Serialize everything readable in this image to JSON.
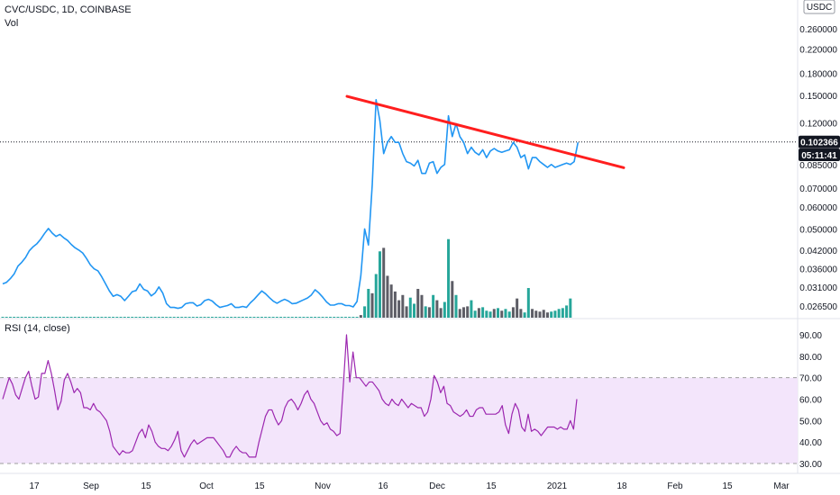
{
  "header": {
    "symbol_line": "CVC/USDC, 1D, COINBASE",
    "volume_label": "Vol",
    "currency_badge": "USDC"
  },
  "rsi_panel": {
    "label": "RSI (14, close)"
  },
  "price_badges": {
    "last_price": "0.102366",
    "countdown": "05:11:41"
  },
  "colors": {
    "price_line": "#2196f3",
    "trendline": "#ff1e1e",
    "vol_up": "#26a69a",
    "vol_down": "#5d5d66",
    "rsi_line": "#9c27b0",
    "rsi_band": "#f3e5fb",
    "badge_bg": "#131722"
  },
  "chart_data": [
    {
      "type": "line",
      "title": "CVC/USDC, 1D, COINBASE",
      "y_scale": "log",
      "y_ticks": [
        "0.260000",
        "0.220000",
        "0.180000",
        "0.150000",
        "0.120000",
        "0.085000",
        "0.070000",
        "0.060000",
        "0.050000",
        "0.042000",
        "0.036000",
        "0.031000",
        "0.026500"
      ],
      "x_ticks": [
        "17",
        "Sep",
        "15",
        "Oct",
        "15",
        "Nov",
        "16",
        "Dec",
        "15",
        "2021",
        "18",
        "Feb",
        "15",
        "Mar"
      ],
      "series": [
        {
          "values": [
            0.0318,
            0.0322,
            0.0332,
            0.0345,
            0.0368,
            0.038,
            0.0395,
            0.0418,
            0.0432,
            0.0443,
            0.046,
            0.0482,
            0.0502,
            0.0483,
            0.047,
            0.0478,
            0.0465,
            0.0455,
            0.044,
            0.0428,
            0.042,
            0.041,
            0.0392,
            0.0372,
            0.036,
            0.0354,
            0.0337,
            0.0318,
            0.03,
            0.0287,
            0.0291,
            0.0287,
            0.0277,
            0.0287,
            0.0298,
            0.0301,
            0.0318,
            0.0304,
            0.03,
            0.0288,
            0.0295,
            0.031,
            0.0295,
            0.027,
            0.0262,
            0.0262,
            0.026,
            0.0262,
            0.027,
            0.0272,
            0.0272,
            0.0265,
            0.0268,
            0.0277,
            0.028,
            0.0276,
            0.0268,
            0.0262,
            0.0264,
            0.0266,
            0.027,
            0.0262,
            0.0262,
            0.0264,
            0.0262,
            0.0272,
            0.028,
            0.029,
            0.03,
            0.0293,
            0.0284,
            0.0276,
            0.0271,
            0.0276,
            0.028,
            0.0276,
            0.027,
            0.0271,
            0.0275,
            0.0279,
            0.0283,
            0.029,
            0.0303,
            0.0295,
            0.0285,
            0.0274,
            0.0267,
            0.0267,
            0.027,
            0.027,
            0.0266,
            0.0266,
            0.0263,
            0.0275,
            0.034,
            0.05,
            0.0438,
            0.072,
            0.145,
            0.122,
            0.093,
            0.102,
            0.107,
            0.102,
            0.102,
            0.093,
            0.087,
            0.086,
            0.084,
            0.088,
            0.079,
            0.079,
            0.086,
            0.087,
            0.079,
            0.083,
            0.085,
            0.127,
            0.107,
            0.119,
            0.107,
            0.102,
            0.093,
            0.098,
            0.094,
            0.092,
            0.096,
            0.09,
            0.095,
            0.097,
            0.095,
            0.094,
            0.095,
            0.096,
            0.102,
            0.098,
            0.09,
            0.092,
            0.082,
            0.09,
            0.09,
            0.087,
            0.085,
            0.083,
            0.085,
            0.083,
            0.084,
            0.085,
            0.086,
            0.085,
            0.087,
            0.102
          ]
        },
        {
          "name": "",
          "values_start": 0.149,
          "values_end": 0.0828
        }
      ]
    },
    {
      "type": "bar",
      "title": "Vol",
      "series": [
        {
          "values": [
            1,
            1,
            1,
            1,
            1,
            1,
            1,
            1,
            1,
            1,
            1,
            1,
            1,
            1,
            1,
            1,
            1,
            1,
            1,
            1,
            1,
            1,
            1,
            1,
            1,
            1,
            1,
            1,
            1,
            1,
            1,
            1,
            1,
            1,
            1,
            1,
            1,
            1,
            1,
            1,
            1,
            1,
            1,
            1,
            1,
            1,
            1,
            1,
            1,
            1,
            1,
            1,
            1,
            1,
            1,
            1,
            1,
            1,
            1,
            1,
            1,
            1,
            1,
            1,
            1,
            1,
            1,
            1,
            1,
            1,
            1,
            1,
            1,
            1,
            1,
            1,
            1,
            1,
            1,
            1,
            1,
            1,
            1,
            1,
            1,
            1,
            1,
            1,
            1,
            1,
            1,
            1,
            1,
            1,
            3,
            13,
            33,
            28,
            50,
            76,
            80,
            48,
            38,
            30,
            20,
            26,
            13,
            23,
            16,
            33,
            26,
            13,
            12,
            26,
            20,
            11,
            18,
            90,
            42,
            26,
            10,
            12,
            13,
            20,
            8,
            11,
            12,
            8,
            7,
            10,
            11,
            8,
            10,
            7,
            12,
            22,
            10,
            6,
            34,
            10,
            8,
            7,
            9,
            6,
            7,
            8,
            10,
            11,
            14,
            22
          ],
          "up": [
            1,
            1,
            1,
            1,
            1,
            1,
            1,
            1,
            1,
            1,
            1,
            1,
            1,
            1,
            1,
            1,
            1,
            1,
            1,
            1,
            1,
            1,
            1,
            1,
            1,
            1,
            1,
            1,
            1,
            1,
            1,
            1,
            1,
            1,
            1,
            1,
            1,
            1,
            1,
            1,
            1,
            1,
            1,
            1,
            1,
            1,
            1,
            1,
            1,
            1,
            1,
            1,
            1,
            1,
            1,
            1,
            1,
            1,
            1,
            1,
            1,
            1,
            1,
            1,
            1,
            1,
            1,
            1,
            1,
            1,
            1,
            1,
            1,
            1,
            1,
            1,
            1,
            1,
            1,
            1,
            1,
            1,
            1,
            1,
            1,
            1,
            1,
            1,
            1,
            1,
            1,
            1,
            1,
            1,
            0,
            1,
            1,
            0,
            1,
            1,
            0,
            0,
            0,
            0,
            0,
            0,
            0,
            1,
            1,
            0,
            0,
            1,
            0,
            1,
            0,
            0,
            1,
            1,
            0,
            1,
            0,
            0,
            0,
            1,
            1,
            0,
            1,
            1,
            1,
            0,
            1,
            0,
            1,
            1,
            0,
            0,
            0,
            1,
            1,
            0,
            0,
            0,
            0,
            0,
            1,
            1,
            1,
            1,
            1,
            1
          ]
        }
      ]
    },
    {
      "type": "line",
      "title": "RSI (14, close)",
      "ylim": [
        30,
        90
      ],
      "y_ticks": [
        "90.00",
        "80.00",
        "70.00",
        "60.00",
        "50.00",
        "40.00",
        "30.00"
      ],
      "bands": [
        30,
        70
      ],
      "series": [
        {
          "values": [
            60,
            65,
            70,
            67,
            62,
            60,
            65,
            70,
            73,
            66,
            60,
            61,
            72,
            72,
            78,
            72,
            64,
            55,
            59,
            69,
            72,
            68,
            63,
            65,
            63,
            56,
            56,
            55,
            58,
            55,
            54,
            52,
            50,
            45,
            38,
            36,
            34,
            36,
            35,
            35,
            36,
            40,
            44,
            46,
            42,
            48,
            45,
            40,
            38,
            37,
            37,
            36,
            38,
            41,
            45,
            36,
            33,
            36,
            39,
            41,
            39,
            40,
            41,
            42,
            42,
            42,
            40,
            38,
            36,
            33,
            33,
            36,
            38,
            36,
            35,
            35,
            33,
            33,
            33,
            40,
            46,
            52,
            55,
            55,
            51,
            48,
            50,
            56,
            59,
            60,
            58,
            55,
            58,
            62,
            64,
            60,
            58,
            54,
            50,
            48,
            49,
            46,
            45,
            43,
            44,
            66,
            90,
            68,
            82,
            70,
            70,
            68,
            66,
            68,
            68,
            66,
            64,
            60,
            58,
            57,
            60,
            58,
            57,
            60,
            58,
            56,
            58,
            57,
            56,
            56,
            52,
            54,
            60,
            71,
            68,
            63,
            66,
            58,
            57,
            54,
            53,
            52,
            53,
            55,
            52,
            52,
            55,
            56,
            56,
            53,
            53,
            53,
            53,
            54,
            57,
            48,
            44,
            53,
            58,
            55,
            47,
            45,
            53,
            45,
            46,
            45,
            43,
            45,
            47,
            47,
            47,
            46,
            47,
            46,
            46,
            50,
            46,
            60
          ]
        }
      ]
    }
  ]
}
